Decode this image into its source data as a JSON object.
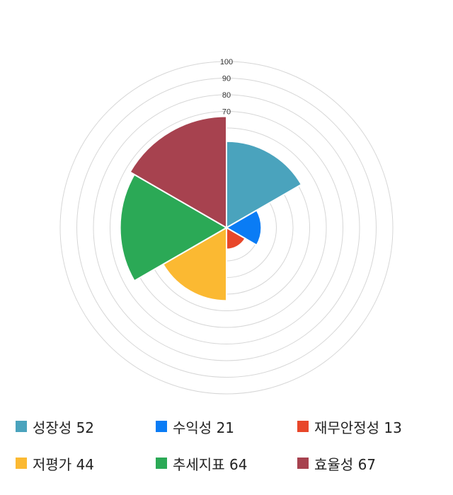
{
  "chart_data": {
    "type": "polar-area",
    "r_range": [
      0,
      100
    ],
    "r_ticks": [
      0,
      10,
      20,
      30,
      40,
      50,
      60,
      70,
      80,
      90,
      100
    ],
    "r_tick_labels": [
      "70",
      "80",
      "90",
      "100"
    ],
    "grid": true,
    "legend_position": "bottom",
    "series": [
      {
        "name": "성장성",
        "value": 52,
        "color": "#4aa3bd"
      },
      {
        "name": "수익성",
        "value": 21,
        "color": "#0a7cf5"
      },
      {
        "name": "재무안정성",
        "value": 13,
        "color": "#e8472a"
      },
      {
        "name": "저평가",
        "value": 44,
        "color": "#fbb932"
      },
      {
        "name": "추세지표",
        "value": 64,
        "color": "#2ba956"
      },
      {
        "name": "효율성",
        "value": 67,
        "color": "#a7424f"
      }
    ]
  },
  "legend": [
    {
      "label": "성장성",
      "value": "52",
      "color": "#4aa3bd"
    },
    {
      "label": "수익성",
      "value": "21",
      "color": "#0a7cf5"
    },
    {
      "label": "재무안정성",
      "value": "13",
      "color": "#e8472a"
    },
    {
      "label": "저평가",
      "value": "44",
      "color": "#fbb932"
    },
    {
      "label": "추세지표",
      "value": "64",
      "color": "#2ba956"
    },
    {
      "label": "효율성",
      "value": "67",
      "color": "#a7424f"
    }
  ]
}
